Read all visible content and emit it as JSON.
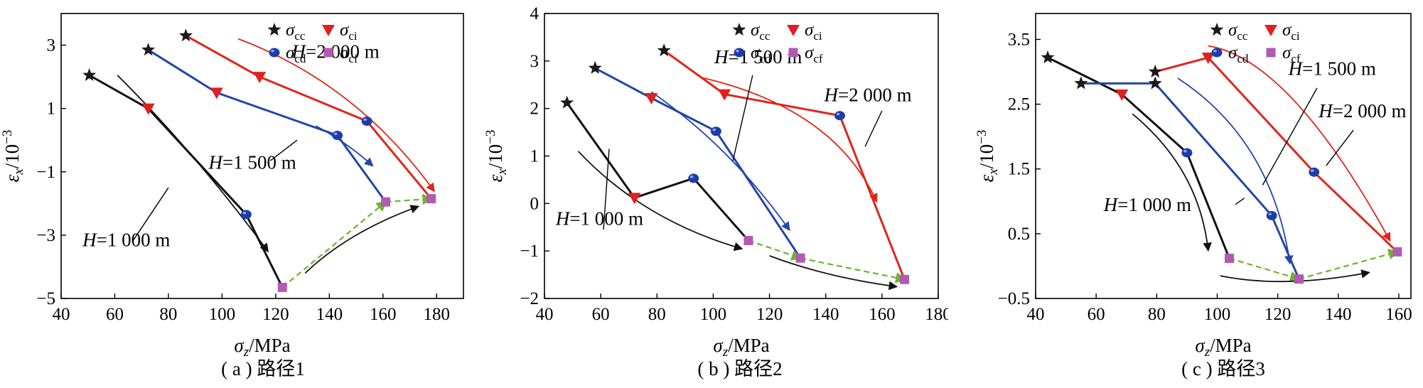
{
  "figure": {
    "xlabel_main": "σ",
    "xlabel_sub": "z",
    "xlabel_unit": "/MPa",
    "ylabel_main": "ε",
    "ylabel_sub": "x",
    "ylabel_unit": "/10",
    "ylabel_exp": "−3"
  },
  "legend": {
    "items": [
      {
        "symbol": "σ",
        "sub": "cc",
        "marker": "star",
        "color": "#1a1a1a"
      },
      {
        "symbol": "σ",
        "sub": "ci",
        "marker": "triangle-down",
        "color": "#e02020"
      },
      {
        "symbol": "σ",
        "sub": "cd",
        "marker": "sphere",
        "color": "#1c3ea8"
      },
      {
        "symbol": "σ",
        "sub": "cf",
        "marker": "square",
        "color": "#b25ab2"
      }
    ]
  },
  "colors": {
    "h1000": "#111111",
    "h1500": "#2346a8",
    "h2000": "#e0261a",
    "path": "#6bb52b",
    "cf": "#b25ab2"
  },
  "chart_data": [
    {
      "type": "line",
      "caption": "( a ) 路径1",
      "xlim": [
        40,
        190
      ],
      "ylim": [
        -5,
        4
      ],
      "xticks": [
        40,
        60,
        80,
        100,
        120,
        140,
        160,
        180
      ],
      "yticks": [
        -5,
        -3,
        -1,
        1,
        3
      ],
      "grid": false,
      "legend_position": "top-right",
      "series": [
        {
          "name": "H=1 000 m",
          "color_key": "h1000",
          "points": [
            [
              50.5,
              2.05
            ],
            [
              72.5,
              1.0
            ],
            [
              109,
              -2.35
            ],
            [
              122.5,
              -4.65
            ]
          ],
          "markers": [
            "star",
            "triangle-down",
            "sphere",
            "square"
          ]
        },
        {
          "name": "H=1 500 m",
          "color_key": "h1500",
          "points": [
            [
              72.5,
              2.85
            ],
            [
              98,
              1.5
            ],
            [
              143,
              0.15
            ],
            [
              161,
              -1.95
            ]
          ],
          "markers": [
            "star",
            "triangle-down",
            "sphere",
            "square"
          ]
        },
        {
          "name": "H=2 000 m",
          "color_key": "h2000",
          "points": [
            [
              86.5,
              3.3
            ],
            [
              114,
              2.0
            ],
            [
              154,
              0.6
            ],
            [
              178,
              -1.85
            ]
          ],
          "markers": [
            "star",
            "triangle-down",
            "sphere",
            "square"
          ]
        }
      ],
      "failure_path": [
        [
          122.5,
          -4.65
        ],
        [
          161,
          -1.95
        ],
        [
          178,
          -1.85
        ]
      ],
      "annotations": [
        {
          "text": "H=1 000 m",
          "anchor": [
            48,
            -3.35
          ],
          "align": "start",
          "leader": [
            [
              67,
              -3.15
            ],
            [
              80,
              -1.5
            ]
          ]
        },
        {
          "text": "H=1 500 m",
          "anchor": [
            95,
            -0.9
          ],
          "align": "start",
          "leader": [
            [
              118,
              -0.65
            ],
            [
              128,
              0.0
            ]
          ]
        },
        {
          "text": "H=2 000 m",
          "anchor": [
            126,
            2.6
          ],
          "align": "start",
          "leader": null
        }
      ],
      "arrows": [
        {
          "color_key": "h1000",
          "points": [
            [
              61,
              2.05
            ],
            [
              90,
              -0.4
            ],
            [
              117,
              -3.5
            ]
          ]
        },
        {
          "color_key": "h1500",
          "points": [
            [
              135,
              0.45
            ],
            [
              147,
              -0.1
            ],
            [
              156,
              -0.8
            ]
          ]
        },
        {
          "color_key": "h2000",
          "points": [
            [
              106,
              3.2
            ],
            [
              150,
              1.8
            ],
            [
              179,
              -1.6
            ]
          ]
        },
        {
          "color_key": "h1000",
          "points": [
            [
              131,
              -4.2
            ],
            [
              147,
              -2.9
            ],
            [
              173,
              -2.1
            ]
          ]
        }
      ]
    },
    {
      "type": "line",
      "caption": "( b ) 路径2",
      "xlim": [
        40,
        180
      ],
      "ylim": [
        -2,
        4
      ],
      "xticks": [
        40,
        60,
        80,
        100,
        120,
        140,
        160,
        180
      ],
      "yticks": [
        -2,
        -1,
        0,
        1,
        2,
        3,
        4
      ],
      "grid": false,
      "legend_position": "top-right",
      "series": [
        {
          "name": "H=1 000 m",
          "color_key": "h1000",
          "points": [
            [
              48,
              2.12
            ],
            [
              72,
              0.12
            ],
            [
              93,
              0.53
            ],
            [
              112.5,
              -0.78
            ]
          ],
          "markers": [
            "star",
            "triangle-down",
            "sphere",
            "square"
          ]
        },
        {
          "name": "H=1 500 m",
          "color_key": "h1500",
          "points": [
            [
              58,
              2.85
            ],
            [
              78,
              2.22
            ],
            [
              101,
              1.52
            ],
            [
              131,
              -1.15
            ]
          ],
          "markers": [
            "star",
            "triangle-down",
            "sphere",
            "square"
          ]
        },
        {
          "name": "H=2 000 m",
          "color_key": "h2000",
          "points": [
            [
              82.5,
              3.22
            ],
            [
              104,
              2.3
            ],
            [
              145,
              1.85
            ],
            [
              168,
              -1.6
            ]
          ],
          "markers": [
            "star",
            "triangle-down",
            "sphere",
            "square"
          ]
        }
      ],
      "failure_path": [
        [
          112.5,
          -0.78
        ],
        [
          131,
          -1.15
        ],
        [
          168,
          -1.6
        ]
      ],
      "annotations": [
        {
          "text": "H=1 000 m",
          "anchor": [
            44,
            -0.45
          ],
          "align": "start",
          "leader": [
            [
              61,
              -0.55
            ],
            [
              63,
              1.15
            ]
          ]
        },
        {
          "text": "H=1 500 m",
          "anchor": [
            116,
            2.95
          ],
          "align": "middle",
          "leader": [
            [
              114,
              2.7
            ],
            [
              107,
              0.9
            ]
          ]
        },
        {
          "text": "H=2 000 m",
          "anchor": [
            155,
            2.15
          ],
          "align": "middle",
          "leader": [
            [
              160,
              1.95
            ],
            [
              154,
              1.2
            ]
          ]
        }
      ],
      "arrows": [
        {
          "color_key": "h1000",
          "points": [
            [
              52,
              1.1
            ],
            [
              75,
              -0.35
            ],
            [
              110,
              -0.95
            ]
          ]
        },
        {
          "color_key": "h1500",
          "points": [
            [
              78,
              2.35
            ],
            [
              106,
              1.2
            ],
            [
              127,
              -0.55
            ]
          ]
        },
        {
          "color_key": "h2000",
          "points": [
            [
              96,
              2.65
            ],
            [
              143,
              2.0
            ],
            [
              158,
              0.05
            ]
          ]
        },
        {
          "color_key": "h1000",
          "points": [
            [
              120,
              -1.1
            ],
            [
              140,
              -1.55
            ],
            [
              165,
              -1.75
            ]
          ]
        }
      ]
    },
    {
      "type": "line",
      "caption": "( c ) 路径3",
      "xlim": [
        40,
        164
      ],
      "ylim": [
        -0.5,
        3.9
      ],
      "xticks": [
        40,
        60,
        80,
        100,
        120,
        140,
        160
      ],
      "yticks": [
        -0.5,
        0.5,
        1.5,
        2.5,
        3.5
      ],
      "grid": false,
      "legend_position": "top-right",
      "series": [
        {
          "name": "H=1 000 m",
          "color_key": "h1000",
          "points": [
            [
              44,
              3.22
            ],
            [
              68.5,
              2.65
            ],
            [
              90,
              1.75
            ],
            [
              104,
              0.12
            ]
          ],
          "markers": [
            "star",
            "triangle-down",
            "sphere",
            "square"
          ]
        },
        {
          "name": "H=1 500 m",
          "color_key": "h1500",
          "points": [
            [
              55,
              2.82
            ],
            [
              79.5,
              2.82
            ],
            [
              118,
              0.78
            ],
            [
              127,
              -0.2
            ]
          ],
          "markers": [
            "star",
            "star",
            "sphere",
            "square"
          ]
        },
        {
          "name": "H=2 000 m",
          "color_key": "h2000",
          "points": [
            [
              79.5,
              3.0
            ],
            [
              97,
              3.22
            ],
            [
              132,
              1.45
            ],
            [
              159.5,
              0.22
            ]
          ],
          "markers": [
            "star",
            "triangle-down",
            "sphere",
            "square"
          ]
        }
      ],
      "failure_path": [
        [
          104,
          0.12
        ],
        [
          127,
          -0.2
        ],
        [
          159.5,
          0.22
        ]
      ],
      "annotations": [
        {
          "text": "H=1 000 m",
          "anchor": [
            62.5,
            0.85
          ],
          "align": "start",
          "leader": [
            [
              106,
              0.95
            ],
            [
              109,
              1.05
            ]
          ]
        },
        {
          "text": "H=1 500 m",
          "anchor": [
            138,
            2.95
          ],
          "align": "middle",
          "leader": [
            [
              133,
              2.75
            ],
            [
              115,
              1.25
            ]
          ]
        },
        {
          "text": "H=2 000 m",
          "anchor": [
            148,
            2.3
          ],
          "align": "middle",
          "leader": [
            [
              145,
              2.1
            ],
            [
              136,
              1.55
            ]
          ]
        }
      ],
      "arrows": [
        {
          "color_key": "h1000",
          "points": [
            [
              72,
              2.35
            ],
            [
              94,
              1.5
            ],
            [
              97,
              0.25
            ]
          ]
        },
        {
          "color_key": "h1500",
          "points": [
            [
              87,
              2.9
            ],
            [
              118,
              1.95
            ],
            [
              124,
              0.05
            ]
          ]
        },
        {
          "color_key": "h2000",
          "points": [
            [
              97,
              3.4
            ],
            [
              124,
              3.2
            ],
            [
              157,
              0.4
            ]
          ]
        },
        {
          "color_key": "h1000",
          "points": [
            [
              101,
              -0.15
            ],
            [
              122,
              -0.35
            ],
            [
              150,
              -0.1
            ]
          ]
        }
      ]
    }
  ]
}
